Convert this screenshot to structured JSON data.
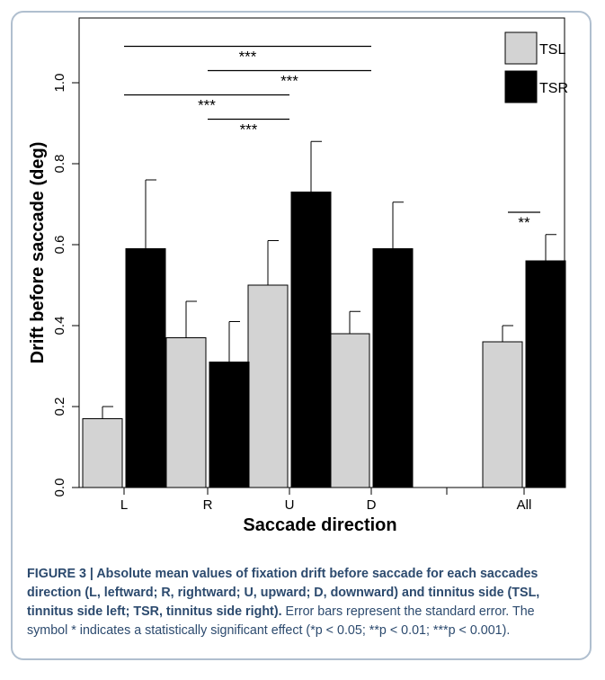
{
  "chart_data": {
    "type": "bar",
    "xlabel": "Saccade direction",
    "ylabel": "Drift before saccade (deg)",
    "categories": [
      "L",
      "R",
      "U",
      "D",
      "All"
    ],
    "ylim": [
      0.0,
      1.1
    ],
    "yticks": [
      "0.0",
      "0.2",
      "0.4",
      "0.6",
      "0.8",
      "1.0"
    ],
    "legend_position": "top-right",
    "series": [
      {
        "name": "TSL",
        "color": "#d3d3d3",
        "values": [
          0.17,
          0.37,
          0.5,
          0.38,
          0.36
        ],
        "errors": [
          0.03,
          0.09,
          0.11,
          0.055,
          0.04
        ]
      },
      {
        "name": "TSR",
        "color": "#000000",
        "values": [
          0.59,
          0.31,
          0.73,
          0.59,
          0.56
        ],
        "errors": [
          0.17,
          0.1,
          0.125,
          0.115,
          0.065
        ]
      }
    ],
    "significance": [
      {
        "from": "L",
        "to": "D",
        "level": 1.09,
        "label": "***"
      },
      {
        "from": "R",
        "to": "D",
        "level": 1.03,
        "label": "***"
      },
      {
        "from": "L",
        "to": "U",
        "level": 0.97,
        "label": "***"
      },
      {
        "from": "R",
        "to": "U",
        "level": 0.91,
        "label": "***"
      },
      {
        "from": "All",
        "to": "All",
        "level": 0.68,
        "label": "**"
      }
    ]
  },
  "caption": {
    "bold": "FIGURE 3 | Absolute mean values of fixation drift before saccade for each saccades direction (L, leftward; R, rightward; U, upward; D, downward) and tinnitus side (TSL, tinnitus side left; TSR, tinnitus side right).",
    "normal": " Error bars represent the standard error. The symbol * indicates a statistically significant effect (*p < 0.05; **p < 0.01; ***p < 0.001)."
  }
}
